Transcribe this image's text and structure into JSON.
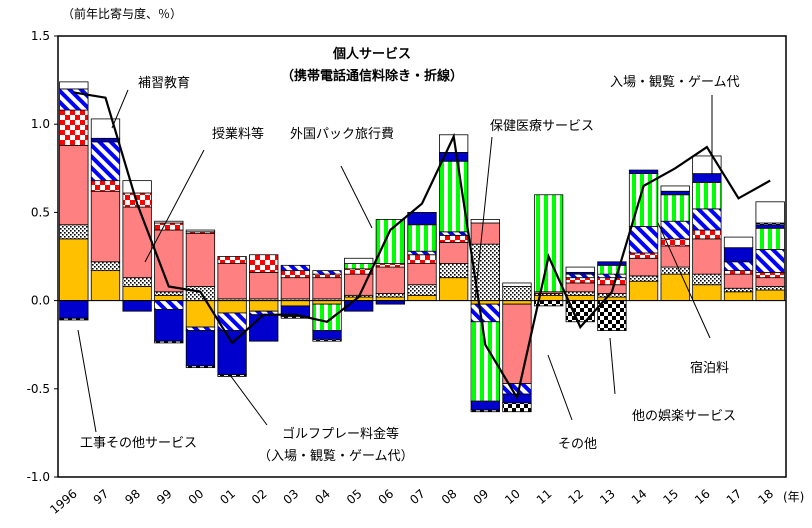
{
  "chart_data": {
    "type": "bar",
    "subtype": "stacked bar with line overlay",
    "ylabel": "（前年比寄与度、％）",
    "xunit": "(年)",
    "ylim": [
      -1.0,
      1.5
    ],
    "yticks": [
      1.5,
      1.0,
      0.5,
      0.0,
      -0.5,
      -1.0
    ],
    "ytick_labels": [
      "1.5",
      "1.0",
      "0.5",
      "0.0",
      "-0.5",
      "-1.0"
    ],
    "grid": false,
    "categories": [
      "1996",
      "97",
      "98",
      "99",
      "00",
      "01",
      "02",
      "03",
      "04",
      "05",
      "06",
      "07",
      "08",
      "09",
      "10",
      "11",
      "12",
      "13",
      "14",
      "15",
      "16",
      "17",
      "18"
    ],
    "series": [
      {
        "name": "工事その他サービス",
        "color": "#FFC000",
        "pattern": "solid-yellow",
        "values": [
          0.35,
          0.17,
          0.08,
          0.03,
          -0.15,
          -0.07,
          -0.06,
          -0.03,
          -0.02,
          0.02,
          0.02,
          0.03,
          0.13,
          -0.02,
          -0.02,
          0.03,
          0.03,
          0.02,
          0.11,
          0.15,
          0.09,
          0.05,
          0.06
        ]
      },
      {
        "name": "宿泊料",
        "color": "#000000",
        "pattern": "dots",
        "values": [
          0.08,
          0.05,
          0.05,
          0.02,
          0.08,
          0.01,
          0.01,
          0.01,
          0.01,
          0.01,
          0.02,
          0.06,
          0.08,
          0.32,
          0.08,
          0.01,
          0.02,
          0.02,
          0.03,
          0.04,
          0.06,
          0.02,
          0.02
        ]
      },
      {
        "name": "授業料等",
        "color": "#FF8080",
        "pattern": "solid-pink",
        "values": [
          0.45,
          0.4,
          0.4,
          0.35,
          0.3,
          0.2,
          0.15,
          0.12,
          0.12,
          0.12,
          0.15,
          0.12,
          0.12,
          0.12,
          -0.45,
          0.01,
          0.05,
          0.05,
          0.1,
          0.12,
          0.2,
          0.08,
          0.05
        ]
      },
      {
        "name": "補習教育",
        "color": "#FF0000",
        "pattern": "checker-red",
        "values": [
          0.2,
          0.06,
          0.08,
          0.04,
          0.01,
          0.04,
          0.1,
          0.04,
          0.02,
          0.03,
          0.02,
          0.05,
          0.04,
          0.0,
          0.0,
          0.0,
          0.03,
          0.04,
          0.03,
          0.04,
          0.05,
          0.02,
          0.03
        ]
      },
      {
        "name": "外国パック旅行費",
        "color": "#0000FF",
        "pattern": "diagonal-blue",
        "values": [
          0.12,
          0.22,
          0.0,
          -0.05,
          -0.02,
          -0.1,
          -0.02,
          0.03,
          0.02,
          0.0,
          0.0,
          0.02,
          0.02,
          -0.1,
          -0.06,
          0.0,
          0.02,
          0.02,
          0.15,
          0.1,
          0.12,
          0.05,
          0.13
        ]
      },
      {
        "name": "入場・観覧・ゲーム代",
        "color": "#00FF00",
        "pattern": "vertical-green",
        "values": [
          0.0,
          0.0,
          0.0,
          0.0,
          0.0,
          0.0,
          0.0,
          0.0,
          -0.15,
          0.03,
          0.25,
          0.15,
          0.4,
          -0.45,
          0.0,
          0.55,
          0.0,
          0.05,
          0.3,
          0.15,
          0.15,
          0.0,
          0.12
        ]
      },
      {
        "name": "ゴルフプレー料金等",
        "color": "#0000CC",
        "pattern": "solid-blue",
        "values": [
          -0.1,
          0.02,
          -0.06,
          -0.18,
          -0.2,
          -0.25,
          -0.15,
          -0.06,
          -0.05,
          -0.06,
          -0.02,
          0.07,
          0.05,
          -0.05,
          -0.05,
          0.0,
          0.01,
          0.02,
          0.02,
          0.02,
          0.05,
          0.08,
          0.02
        ]
      },
      {
        "name": "他の娯楽サービス",
        "color": "#000000",
        "pattern": "checker-black",
        "values": [
          -0.01,
          0.0,
          0.0,
          -0.01,
          -0.01,
          -0.01,
          0.0,
          -0.01,
          -0.01,
          0.0,
          0.0,
          0.0,
          0.0,
          -0.01,
          -0.05,
          -0.03,
          -0.12,
          -0.17,
          0.0,
          0.0,
          0.0,
          0.0,
          0.01
        ]
      },
      {
        "name": "その他",
        "color": "#FFFFFF",
        "pattern": "white",
        "values": [
          0.04,
          0.11,
          0.07,
          0.01,
          0.01,
          0.0,
          0.0,
          0.0,
          0.0,
          0.03,
          0.0,
          0.0,
          0.1,
          0.02,
          0.02,
          0.0,
          0.03,
          0.0,
          0.0,
          0.03,
          0.1,
          0.06,
          0.12
        ]
      }
    ],
    "line": {
      "name": "個人サービス",
      "name_sub": "（携帯電話通信料除き・折線）",
      "values": [
        1.18,
        1.15,
        0.55,
        0.08,
        0.05,
        -0.24,
        -0.08,
        -0.08,
        -0.12,
        0.02,
        0.4,
        0.55,
        0.93,
        -0.25,
        -0.55,
        0.25,
        -0.15,
        0.05,
        0.65,
        0.75,
        0.87,
        0.58,
        0.68
      ]
    },
    "annotations": [
      "補習教育",
      "授業料等",
      "外国パック旅行費",
      "保健医療サービス",
      "入場・観覧・ゲーム代",
      "宿泊料",
      "他の娯楽サービス",
      "その他",
      "ゴルフプレー料金等",
      "（入場・観覧・ゲーム代）",
      "工事その他サービス"
    ]
  }
}
